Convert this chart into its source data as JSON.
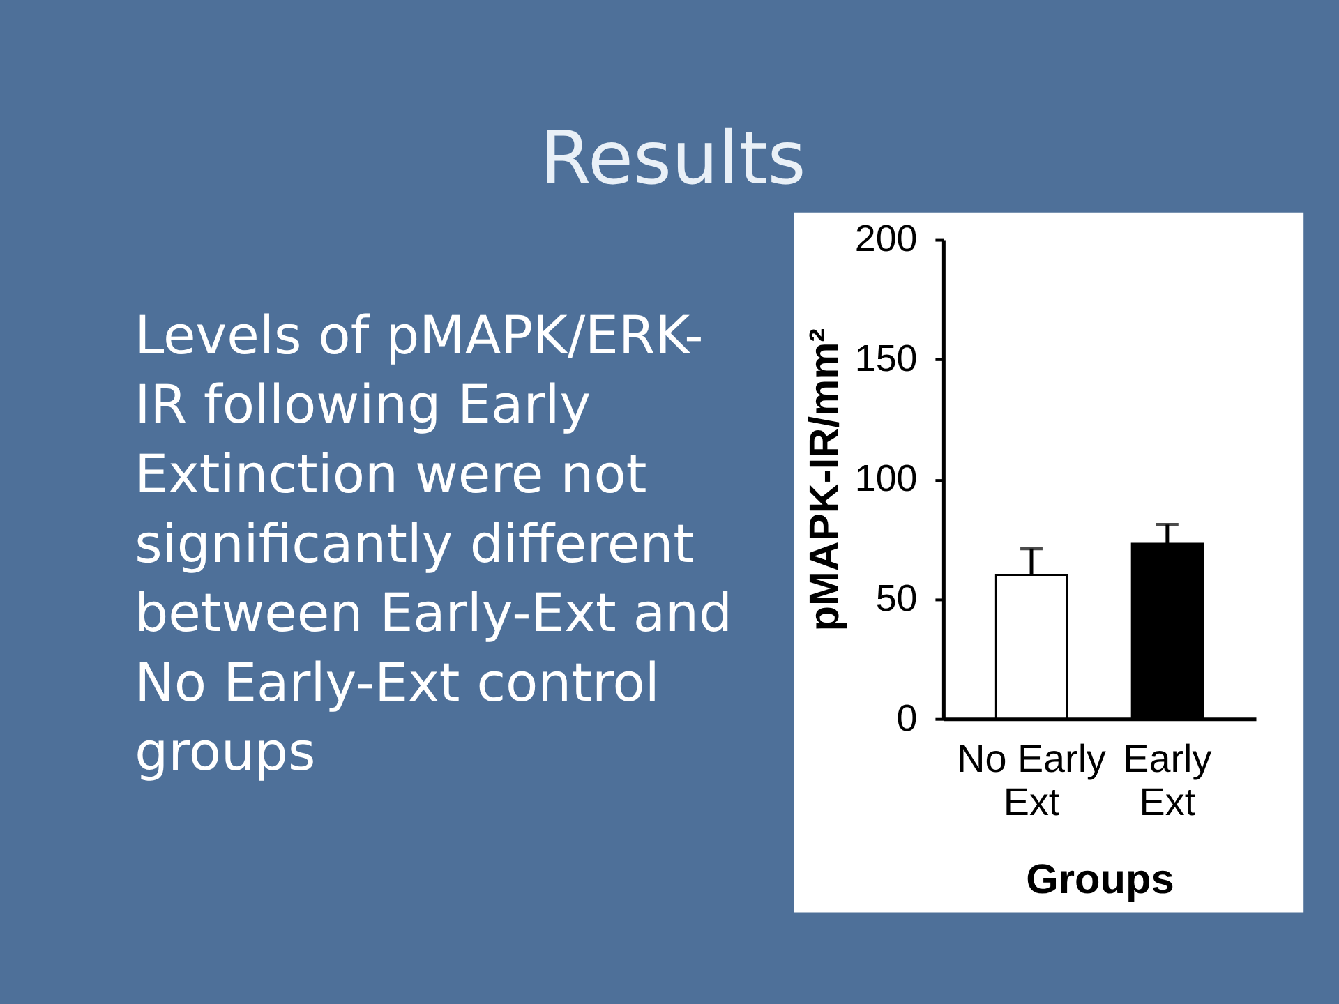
{
  "chart_data": {
    "type": "bar",
    "title": "Results",
    "annotations": [
      "Levels of pMAPK/ERK-IR following Early Extinction were not significantly different between Early-Ext and No Early-Ext control groups"
    ],
    "xlabel": "Groups",
    "ylabel": "pMAPK-IR/mm²",
    "categories": [
      "No Early Ext",
      "Early Ext"
    ],
    "values": [
      60,
      73
    ],
    "colors": [
      "#ffffff",
      "#000000"
    ],
    "errors": [
      [
        60,
        71
      ],
      [
        73,
        81
      ]
    ],
    "ylim": [
      0,
      200
    ],
    "yticks": [
      0,
      50,
      100,
      150,
      200
    ]
  }
}
